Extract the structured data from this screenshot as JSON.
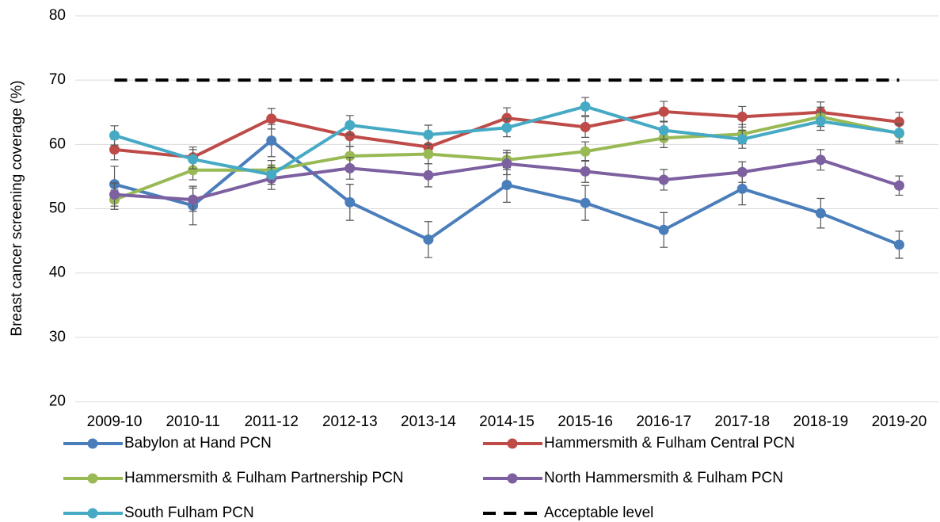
{
  "chart_data": {
    "type": "line",
    "y_label": "Breast cancer screening coverage (%)",
    "categories": [
      "2009-10",
      "2010-11",
      "2011-12",
      "2012-13",
      "2013-14",
      "2014-15",
      "2015-16",
      "2016-17",
      "2017-18",
      "2018-19",
      "2019-20"
    ],
    "ylim": [
      20,
      80
    ],
    "yticks": [
      20,
      30,
      40,
      50,
      60,
      70,
      80
    ],
    "grid": true,
    "series": [
      {
        "name": "Babylon at Hand PCN",
        "color": "#4a7ebb",
        "values": [
          53.8,
          50.5,
          60.6,
          51.0,
          45.2,
          53.7,
          50.9,
          46.7,
          53.1,
          49.3,
          44.4
        ],
        "errors": [
          2.8,
          3.0,
          2.5,
          2.8,
          2.8,
          2.7,
          2.7,
          2.7,
          2.5,
          2.3,
          2.1
        ]
      },
      {
        "name": "Hammersmith & Fulham Central PCN",
        "color": "#be4b48",
        "values": [
          59.2,
          58.0,
          64.0,
          61.3,
          59.6,
          64.1,
          62.7,
          65.1,
          64.3,
          65.0,
          63.5
        ],
        "errors": [
          1.6,
          1.6,
          1.6,
          1.6,
          1.6,
          1.6,
          1.6,
          1.6,
          1.6,
          1.6,
          1.5
        ]
      },
      {
        "name": "Hammersmith & Fulham Partnership PCN",
        "color": "#98b954",
        "values": [
          51.4,
          56.0,
          56.0,
          58.2,
          58.5,
          57.6,
          58.9,
          61.0,
          61.6,
          64.3,
          61.7
        ],
        "errors": [
          1.5,
          1.5,
          1.5,
          1.5,
          1.5,
          1.5,
          1.5,
          1.5,
          1.5,
          1.5,
          1.5
        ]
      },
      {
        "name": "North Hammersmith & Fulham PCN",
        "color": "#7d60a0",
        "values": [
          52.2,
          51.4,
          54.7,
          56.3,
          55.2,
          57.0,
          55.8,
          54.5,
          55.7,
          57.6,
          53.6
        ],
        "errors": [
          1.8,
          1.8,
          1.7,
          1.7,
          1.8,
          1.7,
          1.7,
          1.6,
          1.6,
          1.6,
          1.5
        ]
      },
      {
        "name": "South Fulham PCN",
        "color": "#46aac5",
        "values": [
          61.4,
          57.7,
          55.3,
          63.0,
          61.5,
          62.6,
          65.9,
          62.2,
          60.8,
          63.6,
          61.8
        ],
        "errors": [
          1.5,
          1.5,
          1.5,
          1.5,
          1.5,
          1.4,
          1.4,
          1.4,
          1.4,
          1.4,
          1.3
        ]
      },
      {
        "name": "Acceptable level",
        "color": "#000000",
        "style": "dashed",
        "values": [
          70,
          70,
          70,
          70,
          70,
          70,
          70,
          70,
          70,
          70,
          70
        ]
      }
    ]
  }
}
